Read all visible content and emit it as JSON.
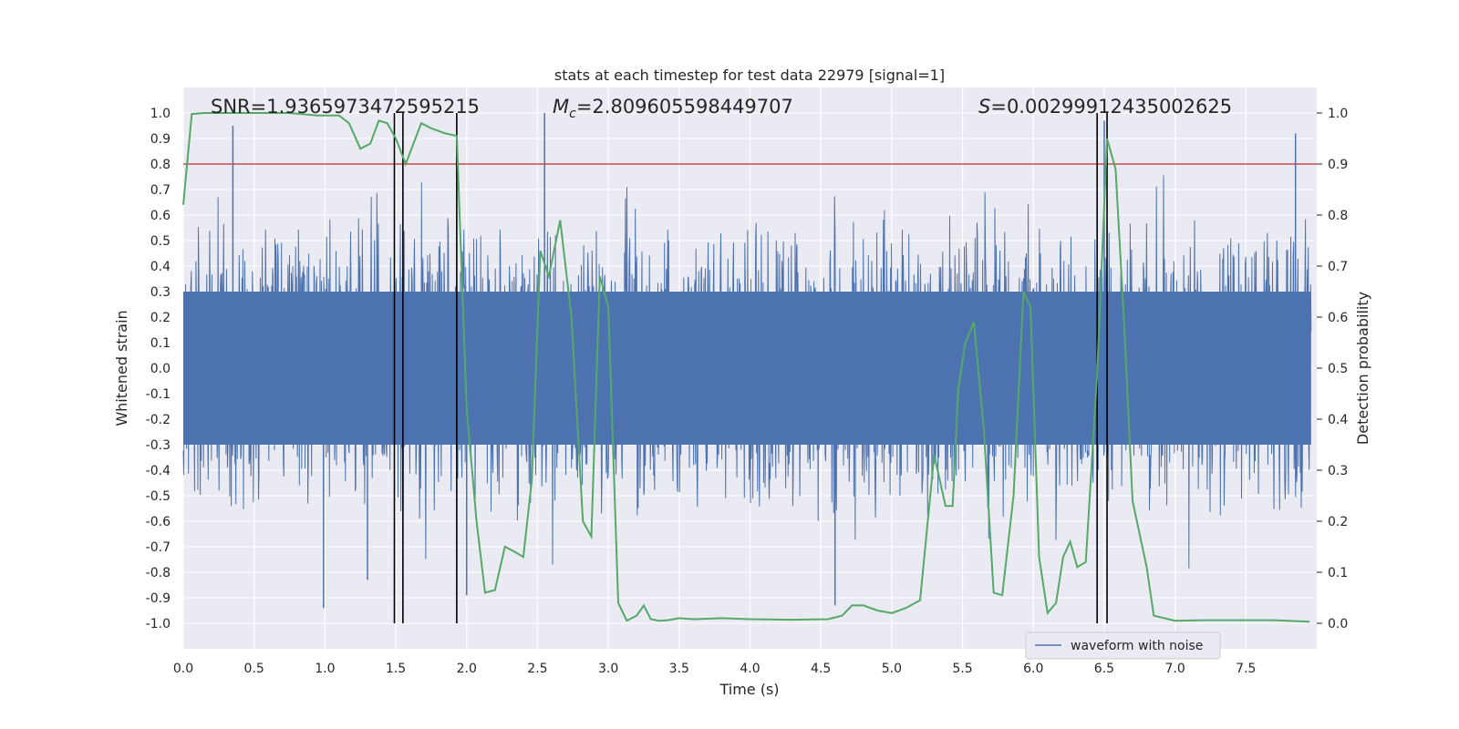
{
  "chart_data": {
    "type": "line",
    "title": "stats at each timestep for test data 22979 [signal=1]",
    "xlabel": "Time (s)",
    "ylabel": "Whitened strain",
    "ylabel_right": "Detection probability",
    "xlim": [
      0.0,
      8.0
    ],
    "ylim": [
      -1.1,
      1.1
    ],
    "ylim_right": [
      -0.05,
      1.05
    ],
    "grid": true,
    "x_ticks": [
      "0.0",
      "0.5",
      "1.0",
      "1.5",
      "2.0",
      "2.5",
      "3.0",
      "3.5",
      "4.0",
      "4.5",
      "5.0",
      "5.5",
      "6.0",
      "6.5",
      "7.0",
      "7.5"
    ],
    "y_ticks": [
      "1.0",
      "0.9",
      "0.8",
      "0.7",
      "0.6",
      "0.5",
      "0.4",
      "0.3",
      "0.2",
      "0.1",
      "0.0",
      "-0.1",
      "-0.2",
      "-0.3",
      "-0.4",
      "-0.5",
      "-0.6",
      "-0.7",
      "-0.8",
      "-0.9",
      "-1.0"
    ],
    "y_right_ticks": [
      "1.0",
      "0.9",
      "0.8",
      "0.7",
      "0.6",
      "0.5",
      "0.4",
      "0.3",
      "0.2",
      "0.1",
      "0.0"
    ],
    "annotations": {
      "snr": "SNR=1.9365973472595215",
      "mc_symbol": "M",
      "mc_sub": "c",
      "mc_value": "=2.809605598449707",
      "s_symbol": "S",
      "s_value": "=0.0029991243500262​5"
    },
    "threshold": {
      "value": 0.9,
      "axis": "right",
      "color": "#c44e52"
    },
    "vertical_lines": [
      1.49,
      1.55,
      1.93,
      6.45,
      6.52
    ],
    "legend": {
      "label": "waveform with noise",
      "position": "lower-right"
    },
    "waveform": {
      "name": "waveform with noise",
      "color": "#4c72b0",
      "description": "dense noisy strain, band roughly -0.6 to 0.6 with spikes to ±1.0",
      "peaks": [
        {
          "x": 0.35,
          "y": 0.95
        },
        {
          "x": 0.99,
          "y": -0.94
        },
        {
          "x": 1.3,
          "y": -0.83
        },
        {
          "x": 2.0,
          "y": -0.89
        },
        {
          "x": 2.55,
          "y": 1.0
        },
        {
          "x": 4.6,
          "y": -0.93
        },
        {
          "x": 6.5,
          "y": 0.97
        },
        {
          "x": 7.85,
          "y": 0.92
        }
      ]
    },
    "series": [
      {
        "name": "detection probability",
        "color": "#55a868",
        "axis": "right",
        "x": [
          0.0,
          0.06,
          0.15,
          0.3,
          0.5,
          0.75,
          0.95,
          1.1,
          1.17,
          1.25,
          1.32,
          1.38,
          1.44,
          1.5,
          1.57,
          1.68,
          1.75,
          1.85,
          1.93,
          2.0,
          2.07,
          2.13,
          2.2,
          2.27,
          2.34,
          2.4,
          2.46,
          2.52,
          2.58,
          2.66,
          2.74,
          2.82,
          2.88,
          2.94,
          3.0,
          3.07,
          3.13,
          3.2,
          3.25,
          3.3,
          3.36,
          3.42,
          3.5,
          3.6,
          3.8,
          4.0,
          4.3,
          4.55,
          4.65,
          4.72,
          4.8,
          4.9,
          5.0,
          5.1,
          5.2,
          5.3,
          5.38,
          5.43,
          5.47,
          5.52,
          5.58,
          5.65,
          5.72,
          5.78,
          5.86,
          5.93,
          5.98,
          6.04,
          6.1,
          6.16,
          6.21,
          6.26,
          6.31,
          6.37,
          6.45,
          6.52,
          6.58,
          6.64,
          6.7,
          6.8,
          6.85,
          7.0,
          7.2,
          7.5,
          7.7,
          7.95
        ],
        "y": [
          0.82,
          0.998,
          1.0,
          1.0,
          1.0,
          1.0,
          0.995,
          0.995,
          0.98,
          0.93,
          0.94,
          0.985,
          0.98,
          0.95,
          0.9,
          0.98,
          0.97,
          0.96,
          0.955,
          0.42,
          0.2,
          0.06,
          0.065,
          0.15,
          0.14,
          0.13,
          0.28,
          0.73,
          0.68,
          0.79,
          0.6,
          0.2,
          0.17,
          0.68,
          0.62,
          0.04,
          0.005,
          0.015,
          0.035,
          0.008,
          0.005,
          0.006,
          0.01,
          0.008,
          0.01,
          0.008,
          0.007,
          0.008,
          0.015,
          0.035,
          0.035,
          0.025,
          0.02,
          0.03,
          0.045,
          0.33,
          0.23,
          0.23,
          0.46,
          0.55,
          0.59,
          0.38,
          0.06,
          0.055,
          0.25,
          0.65,
          0.62,
          0.13,
          0.02,
          0.04,
          0.13,
          0.16,
          0.11,
          0.12,
          0.49,
          0.95,
          0.89,
          0.59,
          0.24,
          0.11,
          0.015,
          0.005,
          0.006,
          0.006,
          0.006,
          0.003
        ]
      }
    ]
  }
}
